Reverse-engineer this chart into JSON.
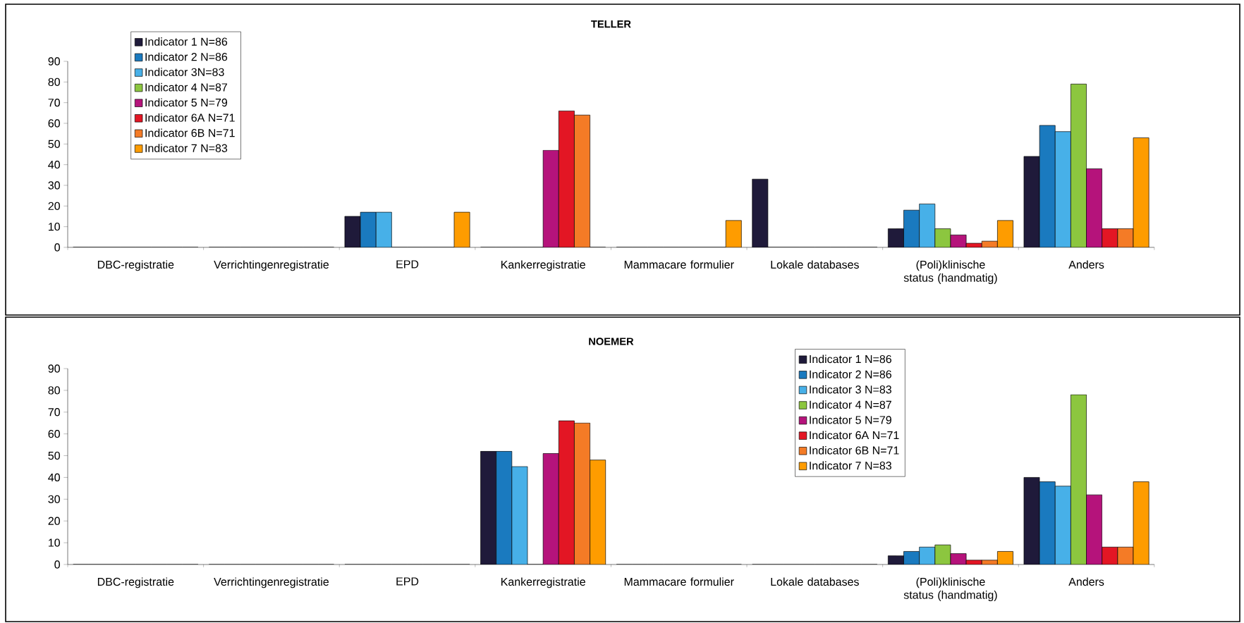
{
  "chart_data": [
    {
      "type": "bar",
      "title": "TELLER",
      "legend": "top left",
      "ylim": [
        0,
        90
      ],
      "yticks": [
        0,
        10,
        20,
        30,
        40,
        50,
        60,
        70,
        80,
        90
      ],
      "categories": [
        "DBC-registratie",
        "Verrichtingenregistratie",
        "EPD",
        "Kankerregistratie",
        "Mammacare formulier",
        "Lokale databases",
        "(Poli)klinische status (handmatig)",
        "Anders"
      ],
      "series": [
        {
          "name": "Indicator 1 N=86",
          "color": "#1f1a3a",
          "values": [
            0,
            0,
            15,
            0,
            0,
            33,
            9,
            44
          ]
        },
        {
          "name": "Indicator 2 N=86",
          "color": "#1a7abf",
          "values": [
            0,
            0,
            17,
            0,
            0,
            0,
            18,
            59
          ]
        },
        {
          "name": "Indicator 3N=83",
          "color": "#47b0e8",
          "values": [
            0,
            0,
            17,
            0,
            0,
            0,
            21,
            56
          ]
        },
        {
          "name": "Indicator 4 N=87",
          "color": "#8cc63f",
          "values": [
            0,
            0,
            0,
            0,
            0,
            0,
            9,
            79
          ]
        },
        {
          "name": "Indicator 5 N=79",
          "color": "#b5137b",
          "values": [
            0,
            0,
            0,
            47,
            0,
            0,
            6,
            38
          ]
        },
        {
          "name": "Indicator 6A N=71",
          "color": "#e31624",
          "values": [
            0,
            0,
            0,
            66,
            0,
            0,
            2,
            9
          ]
        },
        {
          "name": "Indicator 6B  N=71",
          "color": "#f47b26",
          "values": [
            0,
            0,
            0,
            64,
            0,
            0,
            3,
            9
          ]
        },
        {
          "name": "Indicator 7 N=83",
          "color": "#fe9c00",
          "values": [
            0,
            0,
            17,
            0,
            13,
            0,
            13,
            53
          ]
        }
      ]
    },
    {
      "type": "bar",
      "title": "NOEMER",
      "legend": "top",
      "ylim": [
        0,
        90
      ],
      "yticks": [
        0,
        10,
        20,
        30,
        40,
        50,
        60,
        70,
        80,
        90
      ],
      "categories": [
        "DBC-registratie",
        "Verrichtingenregistratie",
        "EPD",
        "Kankerregistratie",
        "Mammacare formulier",
        "Lokale databases",
        "(Poli)klinische status (handmatig)",
        "Anders"
      ],
      "series": [
        {
          "name": "Indicator 1 N=86",
          "color": "#1f1a3a",
          "values": [
            0,
            0,
            0,
            52,
            0,
            0,
            4,
            40
          ]
        },
        {
          "name": "Indicator 2 N=86",
          "color": "#1a7abf",
          "values": [
            0,
            0,
            0,
            52,
            0,
            0,
            6,
            38
          ]
        },
        {
          "name": "Indicator 3 N=83",
          "color": "#47b0e8",
          "values": [
            0,
            0,
            0,
            45,
            0,
            0,
            8,
            36
          ]
        },
        {
          "name": "Indicator 4 N=87",
          "color": "#8cc63f",
          "values": [
            0,
            0,
            0,
            0,
            0,
            0,
            9,
            78
          ]
        },
        {
          "name": "Indicator 5 N=79",
          "color": "#b5137b",
          "values": [
            0,
            0,
            0,
            51,
            0,
            0,
            5,
            32
          ]
        },
        {
          "name": "Indicator 6A N=71",
          "color": "#e31624",
          "values": [
            0,
            0,
            0,
            66,
            0,
            0,
            2,
            8
          ]
        },
        {
          "name": "Indicator 6B N=71",
          "color": "#f47b26",
          "values": [
            0,
            0,
            0,
            65,
            0,
            0,
            2,
            8
          ]
        },
        {
          "name": "Indicator 7 N=83",
          "color": "#fe9c00",
          "values": [
            0,
            0,
            0,
            48,
            0,
            0,
            6,
            38
          ]
        }
      ]
    }
  ]
}
